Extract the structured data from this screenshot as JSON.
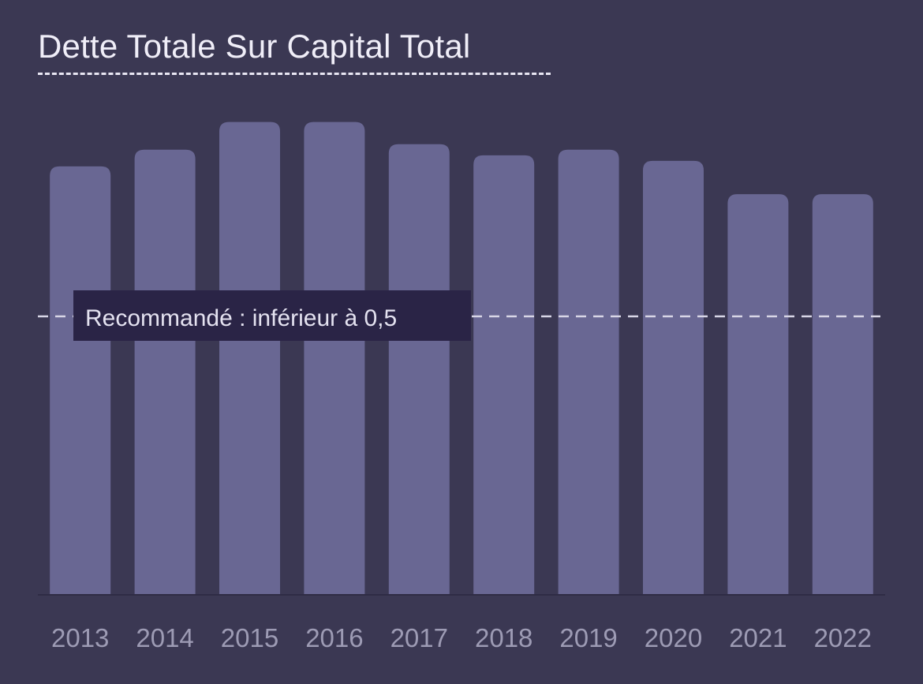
{
  "title": "Dette Totale Sur Capital Total",
  "colors": {
    "background": "#3b3853",
    "bar": "#696793",
    "reference_line": "#d8d6e6",
    "label_box": "#2a2446",
    "label_text": "#e4e2f0",
    "tick_text": "#9d9bb4",
    "baseline": "#2f2c45"
  },
  "chart_data": {
    "type": "bar",
    "categories": [
      "2013",
      "2014",
      "2015",
      "2016",
      "2017",
      "2018",
      "2019",
      "2020",
      "2021",
      "2022"
    ],
    "values": [
      0.77,
      0.8,
      0.85,
      0.85,
      0.81,
      0.79,
      0.8,
      0.78,
      0.72,
      0.72
    ],
    "ylim": [
      0,
      1.0
    ],
    "reference_line": {
      "value": 0.5,
      "label": "Recommandé : inférieur à 0,5"
    },
    "grid": false,
    "legend": false
  }
}
